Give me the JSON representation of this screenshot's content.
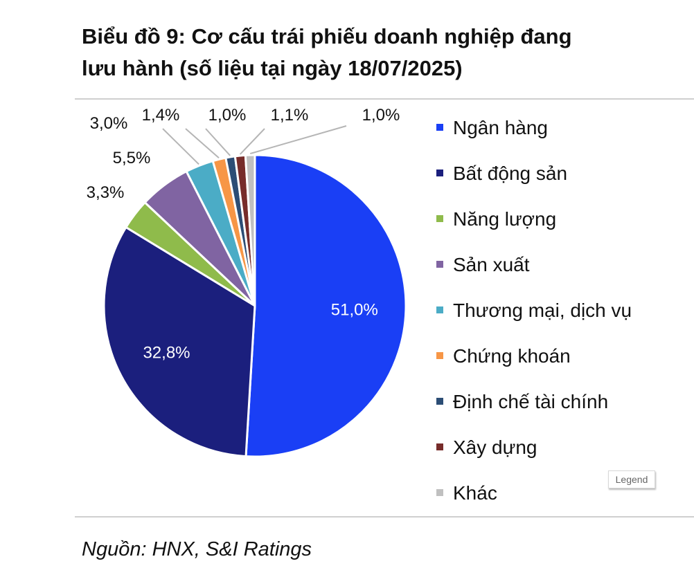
{
  "title_line1": "Biểu đồ 9: Cơ cấu trái phiếu doanh nghiệp đang",
  "title_line2": "lưu hành (số liệu tại ngày 18/07/2025)",
  "source": "Nguồn: HNX, S&I Ratings",
  "legend_tag": "Legend",
  "chart_data": {
    "type": "pie",
    "title": "Biểu đồ 9: Cơ cấu trái phiếu doanh nghiệp đang lưu hành (số liệu tại ngày 18/07/2025)",
    "legend_position": "right",
    "slices": [
      {
        "name": "Ngân hàng",
        "value": 51.0,
        "label": "51,0%",
        "color": "#1a3ff5"
      },
      {
        "name": "Bất động sản",
        "value": 32.8,
        "label": "32,8%",
        "color": "#1b1f7d"
      },
      {
        "name": "Năng lượng",
        "value": 3.3,
        "label": "3,3%",
        "color": "#8fbb4b"
      },
      {
        "name": "Sản xuất",
        "value": 5.5,
        "label": "5,5%",
        "color": "#8064a2"
      },
      {
        "name": "Thương mại, dịch vụ",
        "value": 3.0,
        "label": "3,0%",
        "color": "#4bacc6"
      },
      {
        "name": "Chứng khoán",
        "value": 1.4,
        "label": "1,4%",
        "color": "#f79646"
      },
      {
        "name": "Định chế tài chính",
        "value": 1.0,
        "label": "1,0%",
        "color": "#2c4d75"
      },
      {
        "name": "Xây dựng",
        "value": 1.1,
        "label": "1,1%",
        "color": "#772c2a"
      },
      {
        "name": "Khác",
        "value": 1.0,
        "label": "1,0%",
        "color": "#c0c0c0"
      }
    ]
  }
}
